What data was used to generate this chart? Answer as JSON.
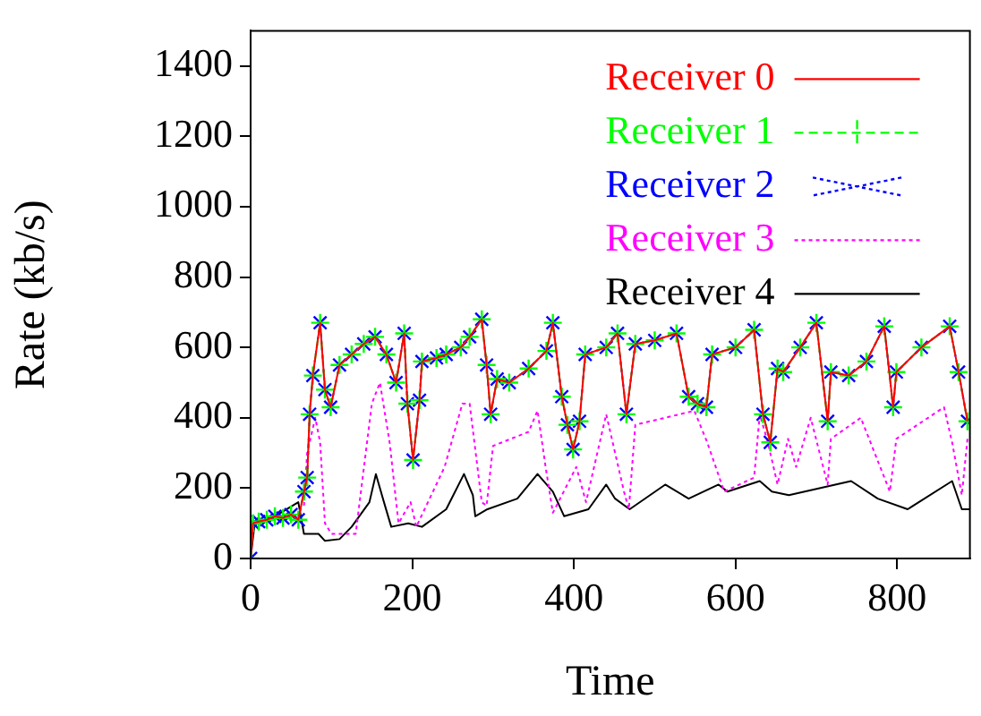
{
  "chart_data": {
    "type": "line",
    "xlabel": "Time",
    "ylabel": "Rate (kb/s)",
    "xlim": [
      0,
      890
    ],
    "ylim": [
      0,
      1500
    ],
    "xticks": [
      0,
      200,
      400,
      600,
      800
    ],
    "yticks": [
      0,
      200,
      400,
      600,
      800,
      1000,
      1200,
      1400
    ],
    "legend": "top right",
    "grid": false,
    "series": [
      {
        "name": "Receiver 0",
        "color": "#ff0000",
        "marker": "none",
        "line_style": "solid",
        "x": [
          0,
          3,
          10,
          20,
          30,
          40,
          50,
          59,
          66,
          70,
          73,
          77,
          86,
          92,
          99,
          110,
          125,
          140,
          154,
          168,
          180,
          190,
          194,
          201,
          209,
          212,
          230,
          242,
          260,
          271,
          286,
          292,
          297,
          305,
          320,
          344,
          366,
          374,
          385,
          392,
          399,
          407,
          414,
          440,
          454,
          465,
          476,
          500,
          527,
          542,
          553,
          564,
          571,
          600,
          623,
          634,
          643,
          652,
          659,
          680,
          700,
          714,
          718,
          740,
          762,
          784,
          795,
          799,
          830,
          865,
          876,
          887
        ],
        "values": [
          0,
          100,
          105,
          110,
          120,
          115,
          125,
          110,
          190,
          230,
          410,
          520,
          670,
          480,
          430,
          550,
          580,
          610,
          630,
          580,
          500,
          640,
          440,
          280,
          450,
          560,
          570,
          580,
          600,
          630,
          680,
          550,
          410,
          510,
          500,
          540,
          590,
          670,
          460,
          380,
          310,
          390,
          580,
          600,
          640,
          410,
          610,
          620,
          640,
          460,
          440,
          430,
          580,
          600,
          650,
          410,
          330,
          540,
          530,
          600,
          670,
          390,
          530,
          520,
          560,
          660,
          430,
          530,
          600,
          660,
          530,
          390
        ]
      },
      {
        "name": "Receiver 1",
        "color": "#00ff00",
        "marker": "cross",
        "line_style": "dashed",
        "x": [
          0,
          3,
          10,
          20,
          30,
          40,
          50,
          59,
          66,
          70,
          73,
          77,
          86,
          92,
          99,
          110,
          125,
          140,
          154,
          168,
          180,
          190,
          194,
          201,
          209,
          212,
          230,
          242,
          260,
          271,
          286,
          292,
          297,
          305,
          320,
          344,
          366,
          374,
          385,
          392,
          399,
          407,
          414,
          440,
          454,
          465,
          476,
          500,
          527,
          542,
          553,
          564,
          571,
          600,
          623,
          634,
          643,
          652,
          659,
          680,
          700,
          714,
          718,
          740,
          762,
          784,
          795,
          799,
          830,
          865,
          876,
          887
        ],
        "values": [
          0,
          100,
          105,
          110,
          120,
          115,
          125,
          110,
          190,
          230,
          410,
          520,
          670,
          480,
          430,
          550,
          580,
          610,
          630,
          580,
          500,
          640,
          440,
          280,
          450,
          560,
          570,
          580,
          600,
          630,
          680,
          550,
          410,
          510,
          500,
          540,
          590,
          670,
          460,
          380,
          310,
          390,
          580,
          600,
          640,
          410,
          610,
          620,
          640,
          460,
          440,
          430,
          580,
          600,
          650,
          410,
          330,
          540,
          530,
          600,
          670,
          390,
          530,
          520,
          560,
          660,
          430,
          530,
          600,
          660,
          530,
          390
        ]
      },
      {
        "name": "Receiver 2",
        "color": "#0000ff",
        "marker": "x",
        "line_style": "dotted",
        "x": [
          0,
          3,
          10,
          20,
          30,
          40,
          50,
          59,
          66,
          70,
          73,
          77,
          86,
          92,
          99,
          110,
          125,
          140,
          154,
          168,
          180,
          190,
          194,
          201,
          209,
          212,
          230,
          242,
          260,
          271,
          286,
          292,
          297,
          305,
          320,
          344,
          366,
          374,
          385,
          392,
          399,
          407,
          414,
          440,
          454,
          465,
          476,
          500,
          527,
          542,
          553,
          564,
          571,
          600,
          623,
          634,
          643,
          652,
          659,
          680,
          700,
          714,
          718,
          740,
          762,
          784,
          795,
          799,
          830,
          865,
          876,
          887
        ],
        "values": [
          0,
          100,
          105,
          110,
          120,
          115,
          125,
          110,
          190,
          230,
          410,
          520,
          670,
          480,
          430,
          550,
          580,
          610,
          630,
          580,
          500,
          640,
          440,
          280,
          450,
          560,
          570,
          580,
          600,
          630,
          680,
          550,
          410,
          510,
          500,
          540,
          590,
          670,
          460,
          380,
          310,
          390,
          580,
          600,
          640,
          410,
          610,
          620,
          640,
          460,
          440,
          430,
          580,
          600,
          650,
          410,
          330,
          540,
          530,
          600,
          670,
          390,
          530,
          520,
          560,
          660,
          430,
          530,
          600,
          660,
          530,
          390
        ]
      },
      {
        "name": "Receiver 3",
        "color": "#ff00ff",
        "marker": "none",
        "line_style": "dotted",
        "x": [
          66,
          70,
          80,
          86,
          92,
          100,
          130,
          150,
          160,
          172,
          183,
          198,
          205,
          240,
          262,
          271,
          286,
          292,
          300,
          344,
          355,
          365,
          374,
          403,
          415,
          440,
          462,
          468,
          476,
          513,
          549,
          565,
          586,
          623,
          630,
          640,
          652,
          665,
          675,
          693,
          714,
          718,
          755,
          791,
          799,
          858,
          868,
          880,
          887
        ],
        "values": [
          150,
          300,
          400,
          330,
          100,
          70,
          70,
          440,
          500,
          330,
          100,
          160,
          90,
          260,
          440,
          440,
          160,
          150,
          320,
          360,
          420,
          260,
          130,
          260,
          160,
          410,
          190,
          140,
          380,
          400,
          420,
          330,
          190,
          230,
          410,
          330,
          210,
          340,
          260,
          400,
          210,
          340,
          400,
          190,
          340,
          430,
          330,
          180,
          340
        ]
      },
      {
        "name": "Receiver 4",
        "color": "#000000",
        "marker": "none",
        "line_style": "solid",
        "x": [
          0,
          5,
          30,
          59,
          66,
          84,
          92,
          110,
          125,
          147,
          155,
          165,
          174,
          195,
          212,
          242,
          264,
          275,
          278,
          293,
          330,
          355,
          374,
          388,
          418,
          440,
          451,
          469,
          513,
          542,
          579,
          590,
          630,
          645,
          666,
          743,
          776,
          813,
          868,
          880,
          890
        ],
        "values": [
          0,
          100,
          120,
          160,
          70,
          70,
          50,
          55,
          90,
          160,
          240,
          160,
          90,
          100,
          90,
          140,
          240,
          180,
          120,
          140,
          170,
          240,
          190,
          120,
          140,
          210,
          170,
          140,
          210,
          170,
          210,
          190,
          220,
          190,
          180,
          220,
          170,
          140,
          220,
          140,
          140
        ]
      }
    ]
  }
}
